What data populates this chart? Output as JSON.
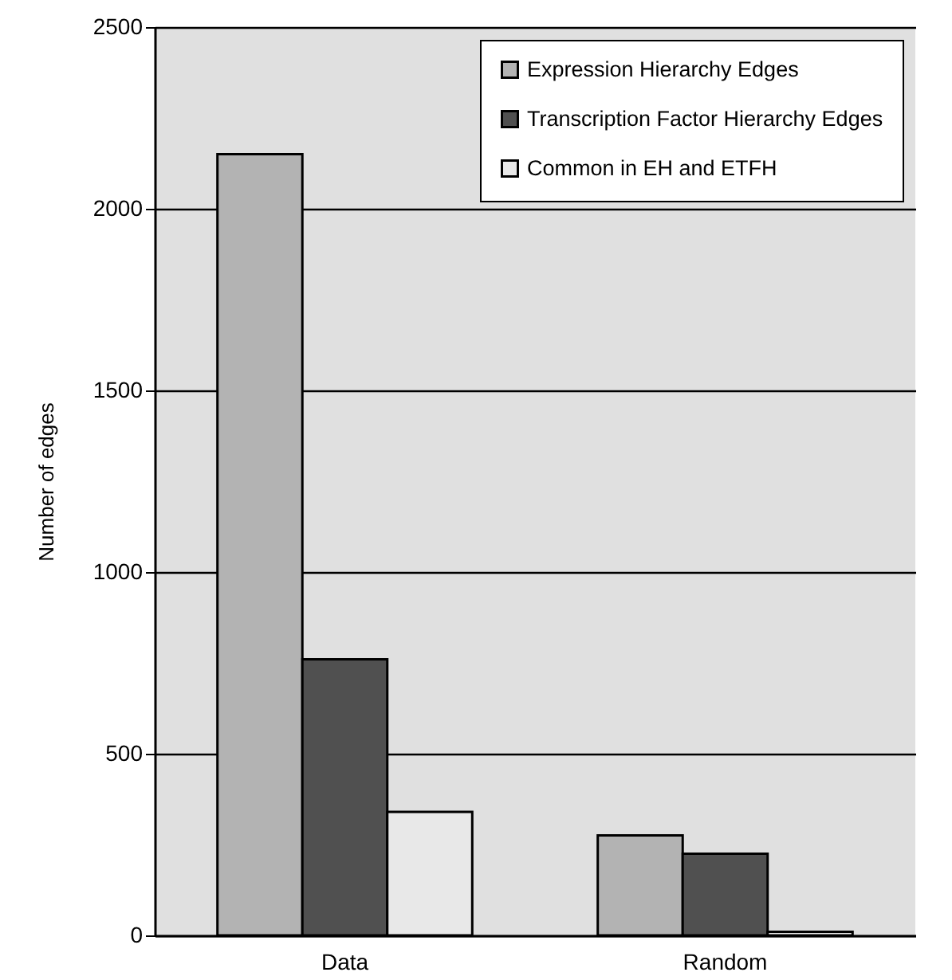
{
  "chart_data": {
    "type": "bar",
    "ylabel": "Number of edges",
    "categories": [
      "Data",
      "Random"
    ],
    "series": [
      {
        "name": "Expression Hierarchy Edges",
        "color": "#b3b3b3",
        "values": [
          2150,
          275
        ]
      },
      {
        "name": "Transcription Factor Hierarchy Edges",
        "color": "#505050",
        "values": [
          760,
          225
        ]
      },
      {
        "name": "Common in EH and ETFH",
        "color": "#e8e8e8",
        "values": [
          340,
          10
        ]
      }
    ],
    "ylim": [
      0,
      2500
    ],
    "yticks": [
      0,
      500,
      1000,
      1500,
      2000,
      2500
    ],
    "grid": "y",
    "legend": "top right"
  }
}
